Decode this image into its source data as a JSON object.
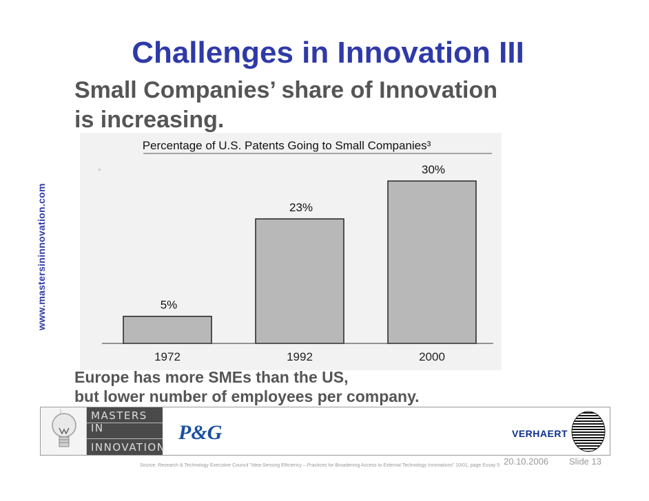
{
  "slide": {
    "side_url": "www.mastersininnovation.com",
    "title": "Challenges in Innovation III",
    "subtitle_line1": "Small Companies’ share of Innovation",
    "subtitle_line2": "is increasing.",
    "footer_line1": "Europe has more SMEs than the US,",
    "footer_line2": "but lower number of employees per company.",
    "date": "20.10.2006",
    "slide_number": "Slide 13",
    "source": "Source:  Research & Technology Executive Council \"Idea-Sensing Efficiency – Practices for Broadening Access to External Technology Innovations\" 10/01, page Essay 5"
  },
  "logos": {
    "masters_line1": "MASTERS IN",
    "masters_line2": "INNOVATION",
    "pg": "P&G",
    "verhaert": "VERHAERT",
    "bulb_icon": "light-bulb-icon",
    "globe_icon": "striped-globe-icon"
  },
  "colors": {
    "title": "#2f3aa8",
    "text_gray": "#555555",
    "bar_fill": "#b8b8b8",
    "chart_bg": "#f2f2f2"
  },
  "chart_data": {
    "type": "bar",
    "title": "Percentage of U.S. Patents Going to Small Companies³",
    "categories": [
      "1972",
      "1992",
      "2000"
    ],
    "values": [
      5,
      23,
      30
    ],
    "labels": [
      "5%",
      "23%",
      "30%"
    ],
    "ylim": [
      0,
      30
    ],
    "grid": false,
    "legend": "none"
  }
}
